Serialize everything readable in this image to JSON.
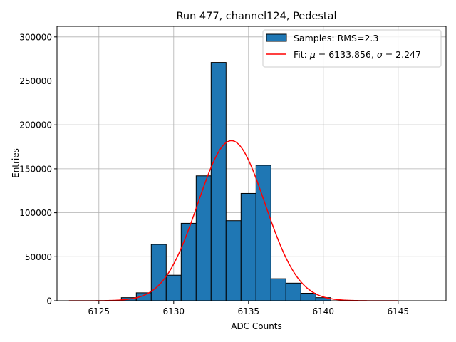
{
  "chart_data": {
    "type": "bar",
    "title": "Run 477, channel124, Pedestal",
    "xlabel": "ADC Counts",
    "ylabel": "Entries",
    "xlim": [
      6122.2,
      6148.2
    ],
    "ylim": [
      0,
      312000
    ],
    "xticks": [
      6125,
      6130,
      6135,
      6140,
      6145
    ],
    "yticks": [
      0,
      50000,
      100000,
      150000,
      200000,
      250000,
      300000
    ],
    "grid": true,
    "legend_position": "top-right",
    "bin_width": 1,
    "bins": [
      {
        "center": 6127,
        "count": 3500
      },
      {
        "center": 6128,
        "count": 9000
      },
      {
        "center": 6129,
        "count": 64000
      },
      {
        "center": 6130,
        "count": 29000
      },
      {
        "center": 6131,
        "count": 88000
      },
      {
        "center": 6132,
        "count": 142000
      },
      {
        "center": 6133,
        "count": 271000
      },
      {
        "center": 6134,
        "count": 91000
      },
      {
        "center": 6135,
        "count": 122000
      },
      {
        "center": 6136,
        "count": 154000
      },
      {
        "center": 6137,
        "count": 25000
      },
      {
        "center": 6138,
        "count": 20000
      },
      {
        "center": 6139,
        "count": 8500
      },
      {
        "center": 6140,
        "count": 3500
      }
    ],
    "fit": {
      "mu": 6133.856,
      "sigma": 2.247,
      "amplitude": 182000,
      "x_start": 6123,
      "x_end": 6145,
      "color": "#ff0000"
    },
    "bar_color": "#1f77b4",
    "bar_edge_color": "#000000",
    "legend": {
      "samples_label": "Samples: RMS=2.3",
      "fit_label_prefix": "Fit: ",
      "fit_mu_symbol": "μ",
      "fit_mu_text": " = 6133.856, ",
      "fit_sigma_symbol": "σ",
      "fit_sigma_text": " = 2.247"
    }
  }
}
